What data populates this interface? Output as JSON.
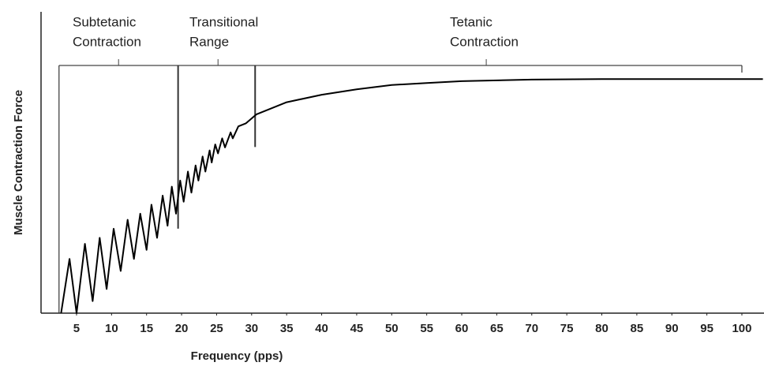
{
  "chart_data": {
    "type": "line",
    "y_label": "Muscle Contraction Force",
    "x_label": "Frequency (pps)",
    "x": [
      2.8,
      4,
      5,
      6.2,
      7.3,
      8.3,
      9.3,
      10.3,
      11.3,
      12.3,
      13.2,
      14.1,
      15,
      15.7,
      16.5,
      17.3,
      18,
      18.6,
      19.2,
      19.8,
      20.3,
      20.9,
      21.4,
      22,
      22.4,
      23,
      23.4,
      24,
      24.3,
      24.8,
      25.2,
      25.8,
      26.2,
      27,
      27.3,
      28.1,
      29.2,
      30.7,
      35,
      40,
      45,
      50,
      55,
      60,
      70,
      80,
      100,
      103
    ],
    "values": [
      0,
      18,
      0,
      23,
      4,
      25,
      8,
      28,
      14,
      31,
      18,
      33,
      21,
      36,
      25,
      39,
      29,
      42,
      33,
      44,
      37,
      47,
      40,
      49,
      44,
      52,
      47,
      54,
      50,
      56,
      53,
      58,
      55,
      60,
      58,
      62,
      63,
      66,
      70,
      72.5,
      74.3,
      75.7,
      76.4,
      77,
      77.5,
      77.7,
      77.7,
      77.7
    ],
    "color": "#000000",
    "xlim": [
      0,
      103
    ],
    "ylim": [
      0,
      100
    ],
    "xticks": [
      5,
      10,
      15,
      20,
      25,
      30,
      35,
      40,
      45,
      50,
      55,
      60,
      65,
      70,
      75,
      80,
      85,
      90,
      95,
      100
    ],
    "region_bounds": [
      2.5,
      19.5,
      30.5,
      100
    ],
    "regions": [
      {
        "lines": [
          "Subtetanic",
          "Contraction"
        ],
        "marker_x": 11
      },
      {
        "lines": [
          "Transitional",
          "Range"
        ],
        "marker_x": 25.2
      },
      {
        "lines": [
          "Tetanic",
          "Contraction"
        ],
        "marker_x": 63.5
      }
    ]
  }
}
